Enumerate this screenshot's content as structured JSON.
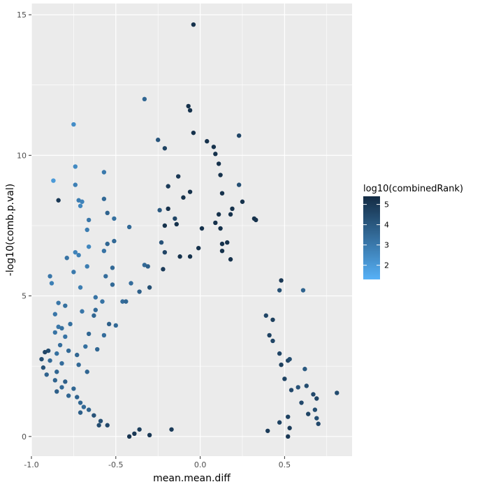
{
  "chart_data": {
    "type": "scatter",
    "title": "",
    "xlabel": "mean.mean.diff",
    "ylabel": "-log10(comb.p.val)",
    "xlim": [
      -1.0,
      0.9
    ],
    "ylim": [
      -0.7,
      15.4
    ],
    "xticks": [
      -1.0,
      -0.5,
      0.0,
      0.5
    ],
    "xtick_labels": [
      "-1.0",
      "-0.5",
      "0.0",
      "0.5"
    ],
    "yticks": [
      0,
      5,
      10,
      15
    ],
    "ytick_labels": [
      "0",
      "5",
      "10",
      "15"
    ],
    "grid": true,
    "panel_background": "#EBEBEB",
    "grid_color": "#FFFFFF",
    "legend": {
      "title": "log10(combinedRank)",
      "placement": "right",
      "type": "colorbar",
      "range": [
        1.3,
        5.4
      ],
      "ticks": [
        2,
        3,
        4,
        5
      ],
      "tick_labels": [
        "2",
        "3",
        "4",
        "5"
      ],
      "color_low": "#56B1F7",
      "color_high": "#132B43"
    },
    "points": [
      {
        "x": -0.04,
        "y": 14.65,
        "c": 5.2
      },
      {
        "x": -0.33,
        "y": 12.0,
        "c": 3.6
      },
      {
        "x": -0.07,
        "y": 11.75,
        "c": 5.2
      },
      {
        "x": -0.06,
        "y": 11.6,
        "c": 5.2
      },
      {
        "x": -0.75,
        "y": 11.1,
        "c": 2.4
      },
      {
        "x": -0.04,
        "y": 10.8,
        "c": 5.2
      },
      {
        "x": 0.23,
        "y": 10.7,
        "c": 4.6
      },
      {
        "x": -0.25,
        "y": 10.55,
        "c": 4.1
      },
      {
        "x": 0.04,
        "y": 10.5,
        "c": 5.2
      },
      {
        "x": -0.21,
        "y": 10.25,
        "c": 4.7
      },
      {
        "x": 0.08,
        "y": 10.3,
        "c": 5.2
      },
      {
        "x": 0.09,
        "y": 10.05,
        "c": 5.2
      },
      {
        "x": 0.11,
        "y": 9.7,
        "c": 5.2
      },
      {
        "x": -0.74,
        "y": 9.6,
        "c": 2.5
      },
      {
        "x": -0.57,
        "y": 9.4,
        "c": 3.0
      },
      {
        "x": -0.13,
        "y": 9.25,
        "c": 5.0
      },
      {
        "x": 0.12,
        "y": 9.3,
        "c": 5.2
      },
      {
        "x": -0.87,
        "y": 9.1,
        "c": 2.0
      },
      {
        "x": -0.74,
        "y": 8.95,
        "c": 2.8
      },
      {
        "x": 0.23,
        "y": 8.95,
        "c": 4.3
      },
      {
        "x": -0.19,
        "y": 8.9,
        "c": 4.9
      },
      {
        "x": 0.13,
        "y": 8.65,
        "c": 5.2
      },
      {
        "x": -0.06,
        "y": 8.7,
        "c": 5.2
      },
      {
        "x": -0.72,
        "y": 8.4,
        "c": 2.9
      },
      {
        "x": -0.7,
        "y": 8.35,
        "c": 2.7
      },
      {
        "x": -0.57,
        "y": 8.45,
        "c": 3.5
      },
      {
        "x": -0.84,
        "y": 8.4,
        "c": 5.0
      },
      {
        "x": -0.1,
        "y": 8.5,
        "c": 5.2
      },
      {
        "x": 0.25,
        "y": 8.35,
        "c": 5.2
      },
      {
        "x": -0.71,
        "y": 8.2,
        "c": 2.6
      },
      {
        "x": -0.24,
        "y": 8.05,
        "c": 4.0
      },
      {
        "x": -0.19,
        "y": 8.1,
        "c": 5.2
      },
      {
        "x": 0.19,
        "y": 8.1,
        "c": 5.2
      },
      {
        "x": 0.18,
        "y": 7.9,
        "c": 5.2
      },
      {
        "x": 0.11,
        "y": 7.9,
        "c": 5.2
      },
      {
        "x": -0.55,
        "y": 7.95,
        "c": 3.7
      },
      {
        "x": -0.66,
        "y": 7.7,
        "c": 3.1
      },
      {
        "x": -0.51,
        "y": 7.75,
        "c": 3.3
      },
      {
        "x": -0.15,
        "y": 7.75,
        "c": 4.6
      },
      {
        "x": -0.14,
        "y": 7.55,
        "c": 5.2
      },
      {
        "x": 0.09,
        "y": 7.6,
        "c": 5.2
      },
      {
        "x": 0.32,
        "y": 7.75,
        "c": 5.2
      },
      {
        "x": 0.33,
        "y": 7.7,
        "c": 5.2
      },
      {
        "x": -0.21,
        "y": 7.5,
        "c": 5.2
      },
      {
        "x": -0.67,
        "y": 7.35,
        "c": 2.9
      },
      {
        "x": -0.42,
        "y": 7.45,
        "c": 3.5
      },
      {
        "x": 0.01,
        "y": 7.4,
        "c": 5.2
      },
      {
        "x": 0.12,
        "y": 7.4,
        "c": 5.2
      },
      {
        "x": -0.51,
        "y": 6.95,
        "c": 3.5
      },
      {
        "x": -0.55,
        "y": 6.85,
        "c": 3.6
      },
      {
        "x": -0.66,
        "y": 6.75,
        "c": 2.6
      },
      {
        "x": -0.23,
        "y": 6.9,
        "c": 4.2
      },
      {
        "x": 0.16,
        "y": 6.9,
        "c": 5.2
      },
      {
        "x": 0.13,
        "y": 6.85,
        "c": 5.2
      },
      {
        "x": -0.01,
        "y": 6.7,
        "c": 5.2
      },
      {
        "x": -0.74,
        "y": 6.55,
        "c": 2.7
      },
      {
        "x": -0.72,
        "y": 6.45,
        "c": 2.8
      },
      {
        "x": -0.57,
        "y": 6.6,
        "c": 3.2
      },
      {
        "x": -0.21,
        "y": 6.55,
        "c": 4.6
      },
      {
        "x": 0.13,
        "y": 6.6,
        "c": 5.2
      },
      {
        "x": -0.12,
        "y": 6.4,
        "c": 5.2
      },
      {
        "x": -0.79,
        "y": 6.35,
        "c": 3.2
      },
      {
        "x": -0.06,
        "y": 6.4,
        "c": 5.2
      },
      {
        "x": 0.18,
        "y": 6.3,
        "c": 5.2
      },
      {
        "x": -0.33,
        "y": 6.1,
        "c": 3.5
      },
      {
        "x": -0.31,
        "y": 6.05,
        "c": 3.8
      },
      {
        "x": -0.67,
        "y": 6.05,
        "c": 2.9
      },
      {
        "x": -0.52,
        "y": 6.0,
        "c": 3.5
      },
      {
        "x": -0.22,
        "y": 5.95,
        "c": 4.9
      },
      {
        "x": -0.56,
        "y": 5.7,
        "c": 3.4
      },
      {
        "x": -0.89,
        "y": 5.7,
        "c": 3.1
      },
      {
        "x": -0.75,
        "y": 5.85,
        "c": 3.0
      },
      {
        "x": -0.88,
        "y": 5.45,
        "c": 2.8
      },
      {
        "x": -0.41,
        "y": 5.45,
        "c": 3.4
      },
      {
        "x": 0.48,
        "y": 5.55,
        "c": 5.0
      },
      {
        "x": 0.61,
        "y": 5.2,
        "c": 3.7
      },
      {
        "x": -0.52,
        "y": 5.4,
        "c": 3.5
      },
      {
        "x": -0.3,
        "y": 5.3,
        "c": 4.3
      },
      {
        "x": -0.71,
        "y": 5.3,
        "c": 2.9
      },
      {
        "x": 0.47,
        "y": 5.2,
        "c": 4.3
      },
      {
        "x": -0.36,
        "y": 5.15,
        "c": 3.8
      },
      {
        "x": -0.62,
        "y": 4.95,
        "c": 3.2
      },
      {
        "x": -0.58,
        "y": 4.8,
        "c": 3.2
      },
      {
        "x": -0.46,
        "y": 4.8,
        "c": 3.4
      },
      {
        "x": -0.44,
        "y": 4.8,
        "c": 3.6
      },
      {
        "x": -0.84,
        "y": 4.75,
        "c": 3.1
      },
      {
        "x": -0.8,
        "y": 4.65,
        "c": 3.3
      },
      {
        "x": -0.62,
        "y": 4.5,
        "c": 3.5
      },
      {
        "x": -0.7,
        "y": 4.45,
        "c": 3.1
      },
      {
        "x": -0.86,
        "y": 4.35,
        "c": 3.1
      },
      {
        "x": -0.63,
        "y": 4.3,
        "c": 3.6
      },
      {
        "x": 0.39,
        "y": 4.3,
        "c": 4.6
      },
      {
        "x": 0.43,
        "y": 4.15,
        "c": 4.8
      },
      {
        "x": -0.77,
        "y": 4.0,
        "c": 3.3
      },
      {
        "x": -0.54,
        "y": 4.0,
        "c": 3.8
      },
      {
        "x": -0.5,
        "y": 3.95,
        "c": 3.5
      },
      {
        "x": -0.84,
        "y": 3.9,
        "c": 3.1
      },
      {
        "x": -0.82,
        "y": 3.85,
        "c": 3.3
      },
      {
        "x": -0.86,
        "y": 3.7,
        "c": 3.2
      },
      {
        "x": -0.66,
        "y": 3.65,
        "c": 3.6
      },
      {
        "x": -0.57,
        "y": 3.6,
        "c": 3.4
      },
      {
        "x": -0.8,
        "y": 3.55,
        "c": 3.2
      },
      {
        "x": 0.41,
        "y": 3.6,
        "c": 4.7
      },
      {
        "x": 0.43,
        "y": 3.4,
        "c": 4.6
      },
      {
        "x": -0.83,
        "y": 3.25,
        "c": 3.4
      },
      {
        "x": -0.68,
        "y": 3.2,
        "c": 3.3
      },
      {
        "x": -0.61,
        "y": 3.1,
        "c": 3.6
      },
      {
        "x": -0.9,
        "y": 3.05,
        "c": 4.4
      },
      {
        "x": -0.92,
        "y": 3.0,
        "c": 4.6
      },
      {
        "x": -0.78,
        "y": 3.05,
        "c": 3.5
      },
      {
        "x": -0.85,
        "y": 2.95,
        "c": 3.3
      },
      {
        "x": -0.73,
        "y": 2.9,
        "c": 3.6
      },
      {
        "x": 0.47,
        "y": 2.95,
        "c": 4.6
      },
      {
        "x": -0.94,
        "y": 2.75,
        "c": 4.3
      },
      {
        "x": -0.89,
        "y": 2.7,
        "c": 3.5
      },
      {
        "x": -0.82,
        "y": 2.6,
        "c": 3.4
      },
      {
        "x": -0.72,
        "y": 2.55,
        "c": 3.5
      },
      {
        "x": 0.52,
        "y": 2.7,
        "c": 4.6
      },
      {
        "x": 0.53,
        "y": 2.75,
        "c": 4.4
      },
      {
        "x": 0.48,
        "y": 2.55,
        "c": 4.8
      },
      {
        "x": -0.93,
        "y": 2.45,
        "c": 4.2
      },
      {
        "x": -0.85,
        "y": 2.3,
        "c": 3.6
      },
      {
        "x": -0.91,
        "y": 2.2,
        "c": 3.7
      },
      {
        "x": -0.67,
        "y": 2.3,
        "c": 3.6
      },
      {
        "x": 0.62,
        "y": 2.4,
        "c": 4.0
      },
      {
        "x": -0.86,
        "y": 2.0,
        "c": 3.7
      },
      {
        "x": -0.8,
        "y": 1.95,
        "c": 3.8
      },
      {
        "x": 0.5,
        "y": 2.05,
        "c": 4.7
      },
      {
        "x": -0.82,
        "y": 1.75,
        "c": 3.5
      },
      {
        "x": -0.75,
        "y": 1.7,
        "c": 3.6
      },
      {
        "x": -0.85,
        "y": 1.6,
        "c": 3.8
      },
      {
        "x": 0.58,
        "y": 1.75,
        "c": 4.2
      },
      {
        "x": 0.63,
        "y": 1.8,
        "c": 4.4
      },
      {
        "x": 0.54,
        "y": 1.65,
        "c": 4.5
      },
      {
        "x": -0.78,
        "y": 1.45,
        "c": 3.6
      },
      {
        "x": -0.73,
        "y": 1.4,
        "c": 3.7
      },
      {
        "x": 0.67,
        "y": 1.5,
        "c": 4.5
      },
      {
        "x": 0.81,
        "y": 1.55,
        "c": 4.4
      },
      {
        "x": 0.69,
        "y": 1.35,
        "c": 4.6
      },
      {
        "x": -0.71,
        "y": 1.2,
        "c": 3.6
      },
      {
        "x": 0.6,
        "y": 1.2,
        "c": 4.5
      },
      {
        "x": -0.69,
        "y": 1.05,
        "c": 3.5
      },
      {
        "x": -0.66,
        "y": 0.95,
        "c": 3.7
      },
      {
        "x": 0.68,
        "y": 0.95,
        "c": 4.4
      },
      {
        "x": 0.64,
        "y": 0.8,
        "c": 4.6
      },
      {
        "x": -0.71,
        "y": 0.85,
        "c": 3.8
      },
      {
        "x": -0.63,
        "y": 0.75,
        "c": 4.2
      },
      {
        "x": 0.69,
        "y": 0.65,
        "c": 4.3
      },
      {
        "x": 0.52,
        "y": 0.7,
        "c": 4.7
      },
      {
        "x": -0.59,
        "y": 0.55,
        "c": 4.3
      },
      {
        "x": 0.7,
        "y": 0.45,
        "c": 4.5
      },
      {
        "x": 0.47,
        "y": 0.5,
        "c": 4.7
      },
      {
        "x": -0.6,
        "y": 0.4,
        "c": 4.4
      },
      {
        "x": -0.55,
        "y": 0.4,
        "c": 4.5
      },
      {
        "x": 0.53,
        "y": 0.3,
        "c": 4.9
      },
      {
        "x": -0.36,
        "y": 0.25,
        "c": 4.8
      },
      {
        "x": -0.17,
        "y": 0.25,
        "c": 4.9
      },
      {
        "x": 0.4,
        "y": 0.2,
        "c": 4.9
      },
      {
        "x": -0.39,
        "y": 0.1,
        "c": 5.0
      },
      {
        "x": -0.3,
        "y": 0.05,
        "c": 5.0
      },
      {
        "x": -0.42,
        "y": 0.0,
        "c": 5.1
      },
      {
        "x": 0.52,
        "y": 0.0,
        "c": 5.0
      }
    ]
  }
}
